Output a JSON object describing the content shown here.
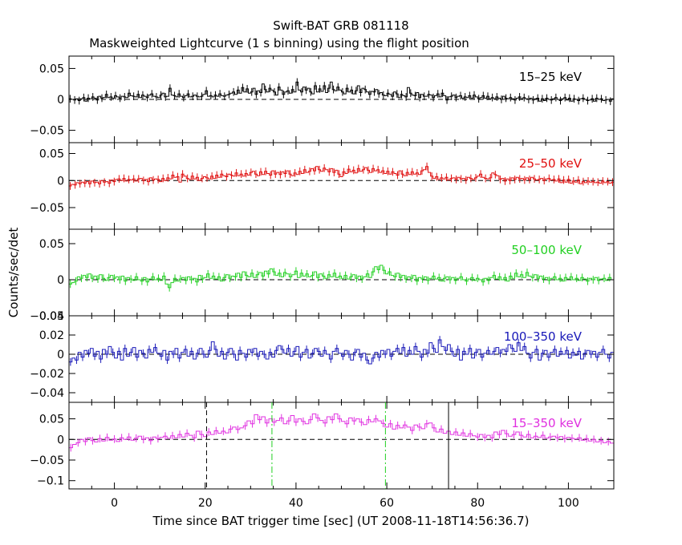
{
  "title": "Swift-BAT GRB 081118",
  "subtitle": "Maskweighted Lightcurve (1 s binning) using the flight position",
  "ylabel": "Counts/sec/det",
  "xlabel": "Time since BAT trigger time [sec] (UT 2008-11-18T14:56:36.7)",
  "colors": {
    "axis": "#000000",
    "black": "#000000",
    "red": "#e01010",
    "green": "#22d022",
    "blue": "#1818b8",
    "magenta": "#e030e0",
    "green_dash": "#22d022"
  },
  "chart_data": {
    "type": "line",
    "xlim": [
      -10,
      110
    ],
    "xticks": [
      0,
      20,
      40,
      60,
      80,
      100
    ],
    "xtick_labels": [
      "0",
      "20",
      "40",
      "60",
      "80",
      "100"
    ],
    "x_start": -10,
    "x_end": 110,
    "bin": 1,
    "panels": [
      {
        "name": "15-25 keV",
        "label": "15–25 keV",
        "color": "black",
        "ylim": [
          -0.07,
          0.07
        ],
        "yticks": [
          -0.05,
          0,
          0.05
        ],
        "ytick_labels": [
          "−0.05",
          "0",
          "0.05"
        ],
        "values": [
          0.001,
          0.0,
          -0.001,
          0.001,
          -0.002,
          0.001,
          0.003,
          -0.003,
          0.002,
          0.001,
          0.004,
          0.002,
          -0.001,
          0.005,
          0.002,
          0.003,
          0.008,
          0.003,
          0.004,
          0.002,
          0.006,
          0.004,
          0.002,
          0.005,
          0.004,
          0.003,
          0.01,
          0.006,
          0.005,
          0.004,
          0.008,
          0.003,
          0.007,
          0.005,
          0.003,
          0.007,
          0.009,
          0.005,
          0.004,
          0.003,
          0.007,
          0.01,
          0.004,
          0.005,
          0.018,
          0.007,
          0.006,
          0.004,
          0.009,
          0.005,
          0.003,
          0.006,
          0.009,
          0.004,
          0.005,
          0.007,
          0.005,
          0.004,
          0.005,
          0.008,
          0.014,
          0.005,
          0.006,
          0.004,
          0.007,
          0.005,
          0.009,
          0.006,
          0.005,
          0.007,
          0.008,
          0.01,
          0.012,
          0.008,
          0.015,
          0.01,
          0.019,
          0.012,
          0.017,
          0.01,
          0.012,
          0.018,
          0.008,
          0.014,
          0.011,
          0.025,
          0.016,
          0.012,
          0.018,
          0.015,
          0.012,
          0.007,
          0.02,
          0.015,
          0.008,
          0.012,
          0.014,
          0.01,
          0.016,
          0.012,
          0.028,
          0.015,
          0.012,
          0.02,
          0.015,
          0.018,
          0.012,
          0.009,
          0.022,
          0.012,
          0.017,
          0.013,
          0.022,
          0.011,
          0.018,
          0.028,
          0.016,
          0.014,
          0.02,
          0.015,
          0.012,
          0.009,
          0.018,
          0.012,
          0.015,
          0.009,
          0.014,
          0.022,
          0.011,
          0.018,
          0.016,
          0.012,
          0.008,
          0.013,
          0.012,
          0.016,
          0.009,
          0.011,
          0.007,
          0.006,
          0.01,
          0.008,
          0.005,
          0.012,
          0.009,
          0.003,
          0.008,
          0.006,
          0.004,
          0.019,
          0.01,
          0.007,
          0.006,
          0.011,
          0.003,
          0.008,
          0.005,
          0.005,
          0.008,
          0.007,
          0.003,
          0.006,
          0.009,
          0.004,
          0.01,
          0.006,
          -0.001,
          0.004,
          0.005,
          0.007,
          0.003,
          0.005,
          0.006,
          0.002,
          0.004,
          0.003,
          0.006,
          0.002,
          0.007,
          0.004,
          0.001,
          0.003,
          0.006,
          0.002,
          0.005,
          0.001,
          0.003,
          0.001,
          0.004,
          0.002,
          0.0,
          0.005,
          0.002,
          0.001,
          0.003,
          0.001,
          -0.001,
          0.002,
          0.004,
          0.001,
          0.003,
          0.001,
          0.0,
          0.002,
          -0.001,
          0.001,
          0.002,
          -0.003,
          0.001,
          -0.002,
          0.002,
          0.0,
          -0.001,
          0.001,
          0.003,
          0.0,
          -0.002,
          0.001,
          0.003,
          -0.001,
          0.002,
          -0.003,
          0.001,
          0.0,
          -0.002,
          0.001,
          0.002,
          0.0,
          -0.002,
          -0.001,
          0.001,
          -0.003,
          0.002,
          0.0,
          0.001,
          -0.002,
          -0.001,
          0.0,
          -0.003,
          0.001
        ]
      },
      {
        "name": "25-50 keV",
        "label": "25–50 keV",
        "color": "red",
        "ylim": [
          -0.09,
          0.07
        ],
        "yticks": [
          -0.05,
          0,
          0.05
        ],
        "ytick_labels": [
          "−0.05",
          "0",
          "0.05"
        ],
        "values": [
          -0.01,
          -0.007,
          -0.008,
          -0.004,
          -0.006,
          -0.003,
          -0.005,
          -0.002,
          -0.006,
          -0.001,
          -0.004,
          -0.003,
          -0.006,
          0.0,
          -0.003,
          -0.002,
          -0.005,
          0.001,
          -0.002,
          0.002,
          0.003,
          0.0,
          0.004,
          -0.001,
          0.002,
          0.001,
          0.003,
          -0.001,
          0.003,
          0.004,
          0.0,
          0.002,
          -0.002,
          0.005,
          0.001,
          0.003,
          0.002,
          -0.002,
          0.004,
          0.0,
          0.005,
          0.003,
          0.01,
          0.006,
          0.007,
          -0.003,
          0.012,
          0.008,
          0.004,
          0.002,
          0.008,
          0.003,
          0.006,
          0.0,
          0.004,
          0.007,
          0.005,
          0.003,
          0.008,
          0.004,
          0.01,
          0.006,
          0.012,
          0.009,
          0.007,
          0.012,
          0.01,
          0.008,
          0.014,
          0.009,
          0.012,
          0.008,
          0.013,
          0.01,
          0.015,
          0.017,
          0.012,
          0.009,
          0.016,
          0.011,
          0.017,
          0.013,
          0.01,
          0.018,
          0.012,
          0.015,
          0.011,
          0.016,
          0.013,
          0.018,
          0.012,
          0.009,
          0.014,
          0.011,
          0.017,
          0.013,
          0.02,
          0.015,
          0.017,
          0.022,
          0.018,
          0.026,
          0.02,
          0.017,
          0.023,
          0.02,
          0.016,
          0.022,
          0.015,
          0.019,
          0.012,
          0.007,
          0.016,
          0.013,
          0.021,
          0.016,
          0.019,
          0.014,
          0.022,
          0.017,
          0.02,
          0.024,
          0.019,
          0.015,
          0.022,
          0.018,
          0.02,
          0.015,
          0.018,
          0.013,
          0.017,
          0.012,
          0.016,
          0.013,
          0.01,
          0.018,
          0.012,
          0.009,
          0.015,
          0.011,
          0.016,
          0.012,
          0.014,
          0.011,
          0.018,
          0.02,
          0.026,
          0.015,
          0.008,
          0.004,
          0.007,
          0.002,
          0.005,
          0.003,
          0.006,
          0.001,
          0.004,
          0.005,
          0.002,
          0.006,
          0.003,
          0.004,
          0.001,
          0.006,
          0.004,
          0.002,
          0.005,
          0.008,
          0.012,
          0.006,
          0.004,
          0.003,
          0.005,
          0.014,
          0.011,
          0.009,
          0.002,
          0.004,
          -0.001,
          0.003,
          0.0,
          0.005,
          0.002,
          0.006,
          0.003,
          0.004,
          0.001,
          0.005,
          0.002,
          0.006,
          0.003,
          0.001,
          0.002,
          0.004,
          0.0,
          0.003,
          0.004,
          0.001,
          0.002,
          -0.001,
          0.003,
          -0.004,
          0.001,
          -0.003,
          0.002,
          -0.005,
          -0.001,
          -0.003,
          0.001,
          -0.006,
          -0.002,
          -0.004,
          -0.001,
          -0.003,
          -0.002,
          -0.004,
          -0.003,
          -0.005,
          -0.001,
          -0.004,
          -0.002,
          -0.005,
          -0.003
        ]
      },
      {
        "name": "50-100 keV",
        "label": "50–100 keV",
        "color": "green",
        "ylim": [
          -0.05,
          0.07
        ],
        "yticks": [
          -0.05,
          0,
          0.05
        ],
        "ytick_labels": [
          "−0.05",
          "0",
          "0.05"
        ],
        "values": [
          -0.006,
          -0.004,
          -0.002,
          0.004,
          0.002,
          0.006,
          0.003,
          0.008,
          0.002,
          0.005,
          0.001,
          0.007,
          0.002,
          -0.001,
          0.003,
          0.006,
          0.002,
          0.004,
          0.0,
          0.005,
          -0.002,
          0.003,
          0.001,
          -0.001,
          0.004,
          0.0,
          -0.002,
          0.003,
          -0.003,
          0.001,
          0.004,
          0.0,
          0.002,
          -0.001,
          0.005,
          -0.006,
          -0.011,
          -0.004,
          0.002,
          -0.002,
          0.001,
          0.003,
          -0.001,
          0.004,
          0.0,
          0.002,
          -0.003,
          0.006,
          0.001,
          0.003,
          0.008,
          0.002,
          0.005,
          0.001,
          0.004,
          -0.002,
          0.003,
          0.007,
          0.002,
          0.005,
          0.004,
          0.009,
          0.003,
          0.011,
          0.006,
          0.004,
          0.009,
          0.003,
          0.007,
          0.01,
          0.005,
          0.012,
          0.008,
          0.015,
          0.011,
          0.006,
          0.009,
          0.004,
          0.01,
          0.008,
          0.004,
          0.007,
          0.012,
          0.003,
          0.009,
          0.005,
          0.008,
          0.004,
          0.006,
          0.011,
          0.003,
          0.008,
          0.005,
          0.002,
          0.007,
          0.004,
          0.009,
          0.003,
          0.005,
          0.002,
          0.006,
          0.001,
          0.004,
          0.007,
          0.002,
          0.005,
          0.001,
          0.004,
          0.008,
          0.003,
          0.011,
          0.018,
          0.014,
          0.02,
          0.013,
          0.008,
          0.011,
          0.006,
          0.004,
          0.009,
          0.003,
          0.006,
          0.001,
          0.004,
          0.002,
          0.006,
          -0.002,
          0.003,
          0.001,
          0.004,
          -0.001,
          0.002,
          0.005,
          0.001,
          0.003,
          -0.002,
          0.002,
          0.004,
          0.0,
          0.003,
          -0.001,
          0.002,
          0.004,
          0.0,
          -0.002,
          0.001,
          0.003,
          -0.001,
          0.002,
          0.0,
          -0.003,
          0.002,
          -0.001,
          0.003,
          0.006,
          0.001,
          0.004,
          0.0,
          0.003,
          -0.002,
          0.005,
          0.002,
          0.009,
          0.004,
          0.007,
          0.003,
          0.01,
          0.005,
          0.003,
          0.007,
          0.002,
          0.005,
          0.001,
          0.003,
          -0.001,
          0.002,
          0.004,
          0.0,
          0.002,
          -0.002,
          0.003,
          0.001,
          0.004,
          0.0,
          0.002,
          -0.001,
          0.003,
          0.001,
          -0.002,
          0.002,
          0.0,
          0.003,
          -0.001,
          0.001,
          0.002,
          -0.001,
          0.003,
          0.0
        ]
      },
      {
        "name": "100-350 keV",
        "label": "100–350 keV",
        "color": "blue",
        "ylim": [
          -0.05,
          0.04
        ],
        "yticks": [
          -0.04,
          -0.02,
          0,
          0.02,
          0.04
        ],
        "ytick_labels": [
          "−0.04",
          "−0.02",
          "0",
          "0.02",
          "0.04"
        ],
        "values": [
          -0.008,
          -0.004,
          -0.006,
          0.002,
          -0.003,
          0.004,
          0.001,
          0.006,
          -0.002,
          0.003,
          -0.005,
          0.005,
          0.0,
          0.008,
          0.002,
          -0.004,
          0.003,
          -0.006,
          0.006,
          -0.002,
          0.002,
          0.007,
          -0.003,
          0.004,
          0.001,
          -0.004,
          0.005,
          0.002,
          0.007,
          0.001,
          -0.002,
          0.004,
          -0.006,
          0.003,
          0.0,
          0.006,
          -0.004,
          0.002,
          0.005,
          -0.002,
          0.003,
          -0.005,
          0.001,
          0.006,
          0.0,
          -0.003,
          0.004,
          0.013,
          0.005,
          -0.002,
          0.003,
          -0.005,
          0.002,
          0.006,
          0.0,
          -0.006,
          0.004,
          0.001,
          -0.003,
          0.005,
          0.002,
          0.006,
          -0.002,
          0.003,
          0.0,
          -0.005,
          0.002,
          -0.003,
          0.004,
          0.009,
          0.005,
          0.001,
          0.006,
          -0.002,
          0.003,
          0.008,
          -0.003,
          0.002,
          0.005,
          -0.004,
          0.001,
          0.006,
          0.003,
          -0.002,
          0.004,
          0.0,
          -0.005,
          0.003,
          0.006,
          0.001,
          -0.002,
          0.004,
          0.0,
          -0.006,
          0.002,
          0.005,
          -0.003,
          0.001,
          -0.006,
          -0.01,
          -0.004,
          0.002,
          -0.003,
          0.004,
          0.0,
          0.005,
          -0.002,
          0.003,
          0.006,
          0.001,
          0.007,
          -0.002,
          0.004,
          0.0,
          0.008,
          0.003,
          -0.003,
          0.005,
          0.001,
          0.012,
          0.006,
          0.002,
          0.015,
          0.008,
          0.004,
          0.01,
          0.003,
          -0.002,
          0.005,
          -0.006,
          0.003,
          0.0,
          0.006,
          -0.004,
          0.002,
          0.005,
          -0.003,
          0.001,
          0.004,
          0.0,
          0.003,
          0.007,
          0.001,
          0.005,
          0.003,
          0.01,
          0.006,
          0.003,
          0.012,
          0.004,
          0.008,
          0.001,
          -0.004,
          0.002,
          0.005,
          -0.006,
          0.001,
          0.004,
          -0.003,
          0.002,
          0.005,
          -0.002,
          0.003,
          0.0,
          0.004,
          -0.004,
          0.002,
          -0.001,
          0.003,
          -0.005,
          0.001,
          0.004,
          0.0,
          0.003,
          -0.003,
          0.002,
          0.005,
          0.0,
          -0.004,
          0.002
        ]
      },
      {
        "name": "15-350 keV",
        "label": "15–350 keV",
        "color": "magenta",
        "ylim": [
          -0.12,
          0.09
        ],
        "yticks": [
          -0.1,
          -0.05,
          0,
          0.05
        ],
        "ytick_labels": [
          "−0.1",
          "−0.05",
          "0",
          "0.05"
        ],
        "values": [
          -0.02,
          -0.012,
          -0.008,
          0.0,
          -0.005,
          0.004,
          -0.003,
          -0.006,
          0.002,
          -0.004,
          0.005,
          -0.002,
          0.001,
          -0.005,
          0.004,
          0.0,
          0.006,
          -0.002,
          0.003,
          0.008,
          0.0,
          0.004,
          -0.003,
          0.006,
          0.002,
          0.005,
          0.008,
          0.003,
          0.009,
          0.004,
          0.012,
          0.006,
          0.015,
          0.01,
          0.004,
          0.02,
          0.012,
          0.007,
          0.018,
          0.012,
          0.021,
          0.015,
          0.02,
          0.016,
          0.025,
          0.03,
          0.024,
          0.028,
          0.033,
          0.045,
          0.038,
          0.06,
          0.048,
          0.055,
          0.04,
          0.05,
          0.042,
          0.046,
          0.052,
          0.038,
          0.045,
          0.058,
          0.042,
          0.05,
          0.044,
          0.038,
          0.048,
          0.062,
          0.052,
          0.046,
          0.04,
          0.055,
          0.048,
          0.062,
          0.05,
          0.044,
          0.038,
          0.052,
          0.045,
          0.05,
          0.042,
          0.036,
          0.048,
          0.043,
          0.05,
          0.045,
          0.039,
          0.03,
          0.038,
          0.025,
          0.034,
          0.028,
          0.035,
          0.03,
          0.022,
          0.035,
          0.03,
          0.026,
          0.038,
          0.04,
          0.028,
          0.018,
          0.025,
          0.015,
          0.02,
          0.012,
          0.018,
          0.01,
          0.016,
          0.008,
          0.014,
          0.009,
          0.006,
          0.012,
          0.005,
          0.01,
          0.004,
          0.018,
          0.012,
          0.022,
          0.014,
          0.008,
          0.012,
          0.018,
          0.01,
          0.006,
          0.012,
          0.004,
          0.008,
          0.005,
          0.01,
          0.003,
          0.006,
          0.008,
          0.004,
          0.007,
          0.002,
          0.005,
          0.003,
          0.001,
          0.004,
          -0.002,
          0.002,
          -0.004,
          0.0,
          -0.006,
          -0.003,
          -0.008,
          -0.005,
          -0.009
        ]
      }
    ],
    "markers": [
      {
        "x": 20.3,
        "style": "dashed",
        "color": "black",
        "panel": 4
      },
      {
        "x": 34.7,
        "style": "dashdot",
        "color": "green_dash",
        "panel": 4
      },
      {
        "x": 59.7,
        "style": "dashdot",
        "color": "green_dash",
        "panel": 4
      },
      {
        "x": 73.6,
        "style": "solid",
        "color": "black",
        "panel": 4
      }
    ]
  }
}
